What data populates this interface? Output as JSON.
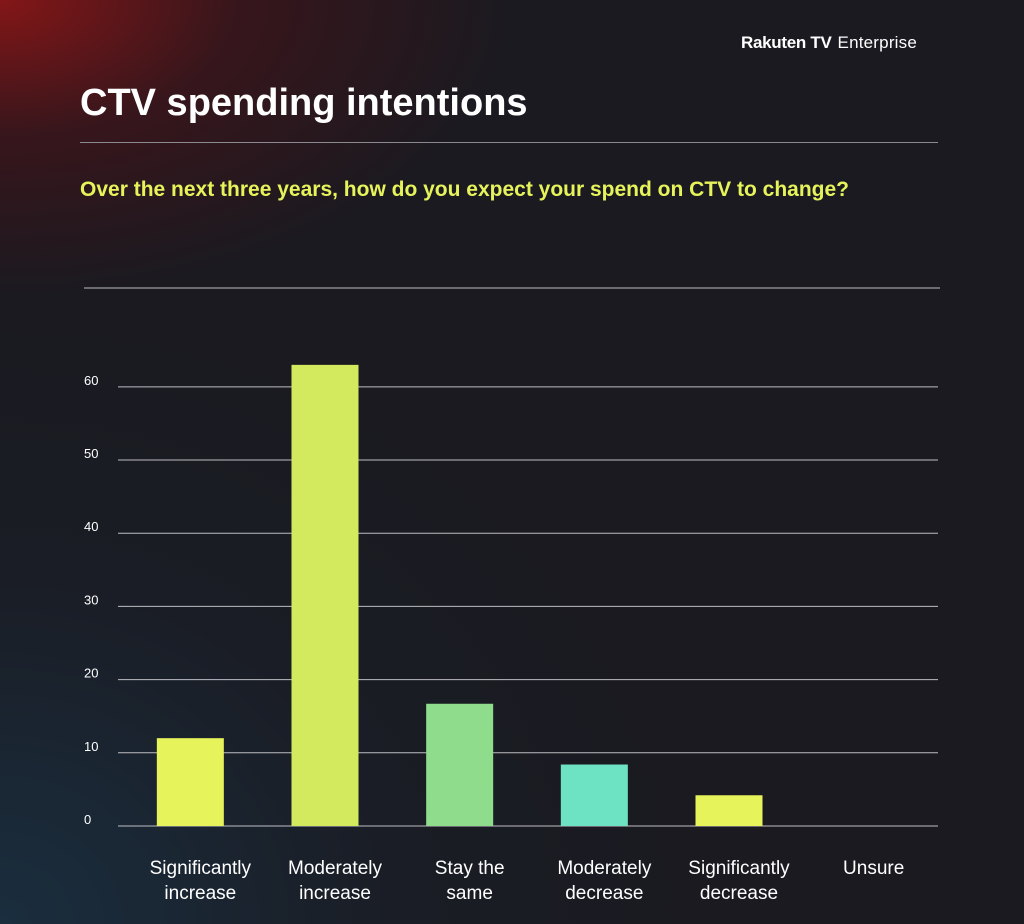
{
  "brand": {
    "main": "Rakuten TV",
    "sub": "Enterprise"
  },
  "title": "CTV spending intentions",
  "subtitle": "Over the next three years, how do you expect your spend on CTV to change?",
  "chart_data": {
    "type": "bar",
    "title": "",
    "xlabel": "",
    "ylabel": "",
    "categories": [
      [
        "Significantly",
        "increase"
      ],
      [
        "Moderately",
        "increase"
      ],
      [
        "Stay the",
        "same"
      ],
      [
        "Moderately",
        "decrease"
      ],
      [
        "Significantly",
        "decrease"
      ],
      [
        "Unsure"
      ]
    ],
    "values": [
      12,
      63,
      16.7,
      8.4,
      4.2,
      0
    ],
    "colors": [
      "#e6f35a",
      "#d3ea5e",
      "#8fdc8c",
      "#6ee3c4",
      "#e6f35a",
      "#e6f35a"
    ],
    "yticks": [
      0,
      10,
      20,
      30,
      40,
      50,
      60
    ],
    "ylim": [
      0,
      73.5
    ],
    "grid": true,
    "grid_color": "#cfcfd4",
    "legend": "none"
  }
}
